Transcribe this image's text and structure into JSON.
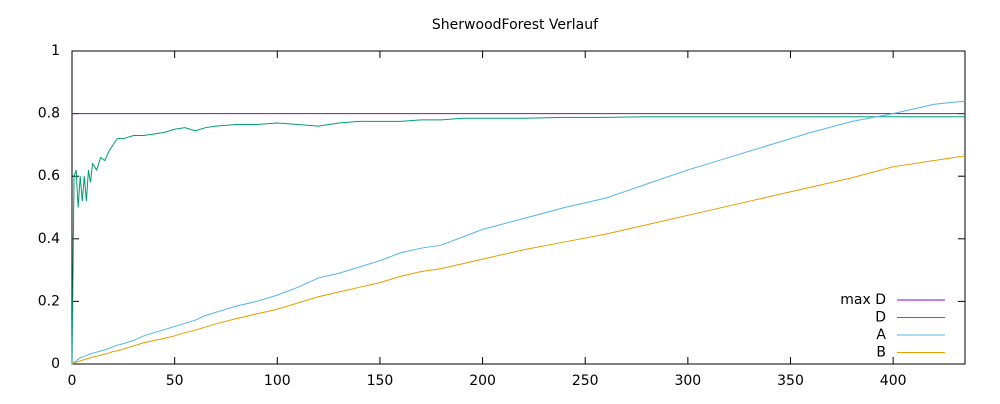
{
  "chart_data": {
    "type": "line",
    "title": "SherwoodForest Verlauf",
    "x": [
      0,
      1,
      2,
      3,
      4,
      5,
      6,
      7,
      8,
      9,
      10,
      12,
      14,
      16,
      18,
      20,
      22,
      25,
      30,
      35,
      40,
      45,
      50,
      55,
      60,
      65,
      70,
      80,
      90,
      100,
      110,
      120,
      130,
      140,
      150,
      160,
      170,
      180,
      190,
      200,
      220,
      240,
      260,
      280,
      300,
      320,
      340,
      360,
      380,
      400,
      420,
      435
    ],
    "series": [
      {
        "name": "max D",
        "color": "#9400d3",
        "values": [
          0.8,
          0.8,
          0.8,
          0.8,
          0.8,
          0.8,
          0.8,
          0.8,
          0.8,
          0.8,
          0.8,
          0.8,
          0.8,
          0.8,
          0.8,
          0.8,
          0.8,
          0.8,
          0.8,
          0.8,
          0.8,
          0.8,
          0.8,
          0.8,
          0.8,
          0.8,
          0.8,
          0.8,
          0.8,
          0.8,
          0.8,
          0.8,
          0.8,
          0.8,
          0.8,
          0.8,
          0.8,
          0.8,
          0.8,
          0.8,
          0.8,
          0.8,
          0.8,
          0.8,
          0.8,
          0.8,
          0.8,
          0.8,
          0.8,
          0.8,
          0.8,
          0.8
        ]
      },
      {
        "name": "D",
        "color": "#009e73",
        "values": [
          0,
          0.6,
          0.62,
          0.5,
          0.6,
          0.52,
          0.6,
          0.52,
          0.62,
          0.58,
          0.64,
          0.62,
          0.66,
          0.65,
          0.68,
          0.7,
          0.72,
          0.72,
          0.73,
          0.73,
          0.735,
          0.74,
          0.75,
          0.755,
          0.745,
          0.755,
          0.76,
          0.765,
          0.765,
          0.77,
          0.765,
          0.76,
          0.77,
          0.775,
          0.775,
          0.775,
          0.78,
          0.78,
          0.785,
          0.785,
          0.785,
          0.788,
          0.788,
          0.79,
          0.79,
          0.79,
          0.79,
          0.79,
          0.79,
          0.79,
          0.79,
          0.79
        ]
      },
      {
        "name": "A",
        "color": "#56b4e9",
        "values": [
          0,
          0.005,
          0.01,
          0.015,
          0.02,
          0.022,
          0.025,
          0.027,
          0.03,
          0.032,
          0.035,
          0.038,
          0.042,
          0.045,
          0.05,
          0.055,
          0.06,
          0.065,
          0.075,
          0.09,
          0.1,
          0.11,
          0.12,
          0.13,
          0.14,
          0.155,
          0.165,
          0.185,
          0.2,
          0.22,
          0.245,
          0.275,
          0.29,
          0.31,
          0.33,
          0.355,
          0.37,
          0.38,
          0.405,
          0.43,
          0.465,
          0.5,
          0.53,
          0.575,
          0.62,
          0.66,
          0.7,
          0.74,
          0.775,
          0.8,
          0.83,
          0.84
        ]
      },
      {
        "name": "B",
        "color": "#e69f00",
        "values": [
          0,
          0.003,
          0.005,
          0.008,
          0.01,
          0.012,
          0.014,
          0.016,
          0.018,
          0.02,
          0.022,
          0.025,
          0.028,
          0.032,
          0.035,
          0.04,
          0.042,
          0.048,
          0.058,
          0.068,
          0.075,
          0.082,
          0.09,
          0.1,
          0.108,
          0.118,
          0.128,
          0.145,
          0.16,
          0.175,
          0.195,
          0.215,
          0.23,
          0.245,
          0.26,
          0.28,
          0.295,
          0.305,
          0.32,
          0.335,
          0.365,
          0.39,
          0.415,
          0.445,
          0.475,
          0.505,
          0.535,
          0.565,
          0.595,
          0.63,
          0.65,
          0.665
        ]
      }
    ],
    "xlim": [
      0,
      435
    ],
    "xticks": [
      0,
      50,
      100,
      150,
      200,
      250,
      300,
      350,
      400
    ],
    "ylim": [
      0,
      1
    ],
    "yticks": [
      0,
      0.2,
      0.4,
      0.6,
      0.8,
      1
    ],
    "legend": "bottom-right"
  }
}
